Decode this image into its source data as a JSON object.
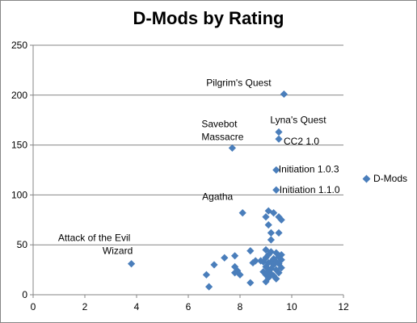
{
  "chart_data": {
    "type": "scatter",
    "title": "D-Mods by Rating",
    "xlabel": "",
    "ylabel": "",
    "xlim": [
      0,
      12
    ],
    "ylim": [
      0,
      250
    ],
    "x_ticks": [
      0,
      2,
      4,
      6,
      8,
      10,
      12
    ],
    "y_ticks": [
      0,
      50,
      100,
      150,
      200,
      250
    ],
    "grid": "horizontal",
    "legend_position": "right",
    "marker_color": "#4a7ebb",
    "series": [
      {
        "name": "D-Mods",
        "points": [
          [
            9.7,
            201
          ],
          [
            9.5,
            163
          ],
          [
            9.5,
            156
          ],
          [
            7.7,
            147
          ],
          [
            9.4,
            125
          ],
          [
            9.4,
            105
          ],
          [
            8.1,
            82
          ],
          [
            9.1,
            84
          ],
          [
            9.3,
            82
          ],
          [
            9.0,
            78
          ],
          [
            9.5,
            78
          ],
          [
            9.6,
            75
          ],
          [
            9.1,
            70
          ],
          [
            9.2,
            62
          ],
          [
            9.5,
            62
          ],
          [
            9.2,
            55
          ],
          [
            3.8,
            31
          ],
          [
            9.0,
            45
          ],
          [
            9.2,
            43
          ],
          [
            8.4,
            44
          ],
          [
            9.4,
            42
          ],
          [
            9.6,
            40
          ],
          [
            9.1,
            40
          ],
          [
            9.5,
            38
          ],
          [
            7.8,
            39
          ],
          [
            7.4,
            37
          ],
          [
            9.0,
            37
          ],
          [
            9.3,
            36
          ],
          [
            9.6,
            35
          ],
          [
            8.8,
            34
          ],
          [
            8.6,
            34
          ],
          [
            9.2,
            33
          ],
          [
            8.9,
            33
          ],
          [
            9.4,
            33
          ],
          [
            9.1,
            32
          ],
          [
            8.5,
            32
          ],
          [
            9.5,
            31
          ],
          [
            7.0,
            30
          ],
          [
            9.3,
            30
          ],
          [
            9.0,
            28
          ],
          [
            7.8,
            28
          ],
          [
            9.6,
            27
          ],
          [
            9.2,
            26
          ],
          [
            9.4,
            25
          ],
          [
            7.9,
            24
          ],
          [
            9.1,
            24
          ],
          [
            8.9,
            23
          ],
          [
            9.5,
            22
          ],
          [
            7.8,
            22
          ],
          [
            9.2,
            21
          ],
          [
            9.0,
            20
          ],
          [
            6.7,
            20
          ],
          [
            8.0,
            20
          ],
          [
            9.3,
            19
          ],
          [
            9.1,
            17
          ],
          [
            9.4,
            16
          ],
          [
            9.0,
            13
          ],
          [
            8.4,
            12
          ],
          [
            6.8,
            8
          ]
        ]
      }
    ],
    "annotations": [
      {
        "text": "Pilgrim's Quest",
        "x": 9.7,
        "y": 201
      },
      {
        "text": "Lyna's Quest",
        "x": 9.5,
        "y": 163
      },
      {
        "text": "CC2 1.0",
        "x": 9.5,
        "y": 156
      },
      {
        "text": "Savebot",
        "x": 7.7,
        "y": 147
      },
      {
        "text": "Massacre",
        "x": 7.7,
        "y": 147
      },
      {
        "text": "Initiation 1.0.3",
        "x": 9.4,
        "y": 125
      },
      {
        "text": "Initiation 1.1.0",
        "x": 9.4,
        "y": 105
      },
      {
        "text": "Agatha",
        "x": 8.1,
        "y": 82
      },
      {
        "text": "Attack of the Evil",
        "x": 3.8,
        "y": 31
      },
      {
        "text": "Wizard",
        "x": 3.8,
        "y": 31
      }
    ]
  }
}
